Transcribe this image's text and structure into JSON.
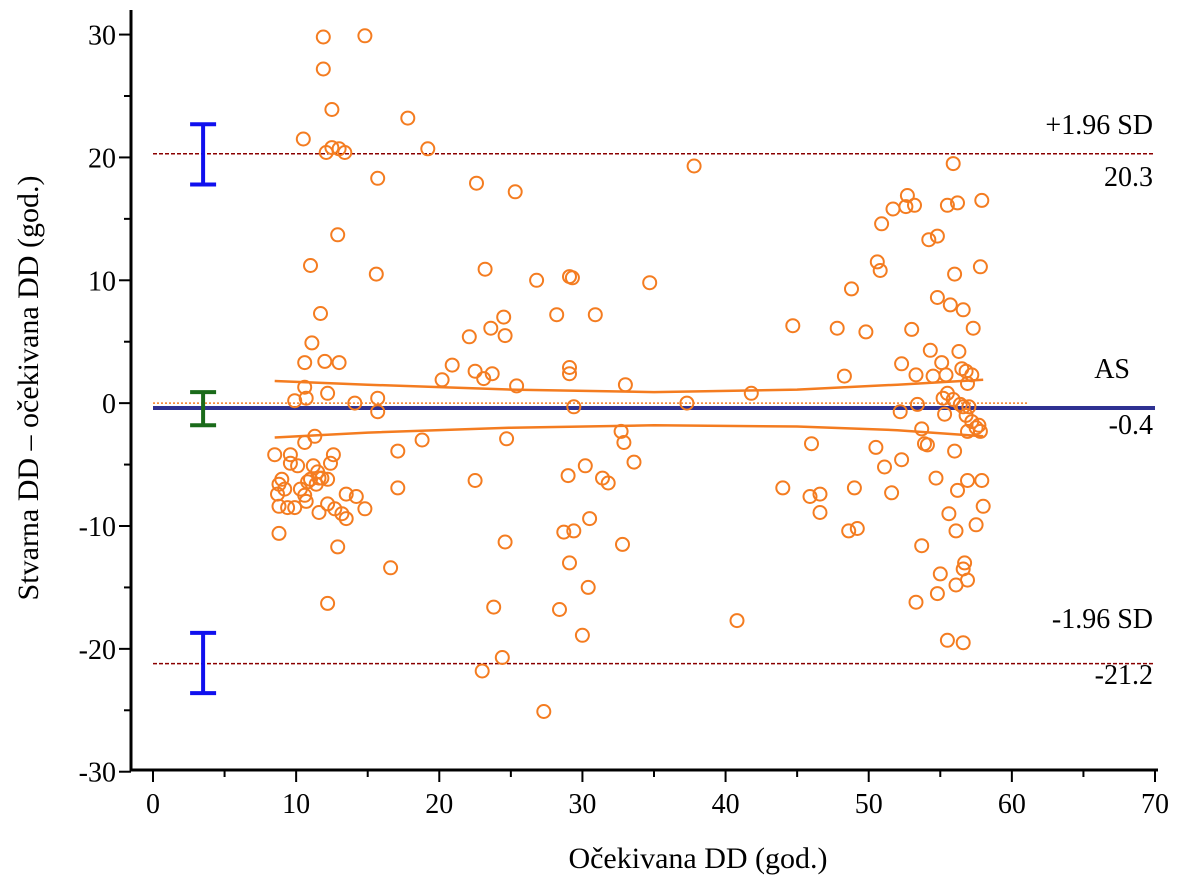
{
  "chart_data": {
    "type": "scatter",
    "title": "",
    "xlabel": "Očekivana DD (god.)",
    "ylabel": "Stvarna DD – očekivana DD (god.)",
    "xlim": [
      0,
      70
    ],
    "ylim": [
      -31,
      32
    ],
    "x_ticks": [
      0,
      10,
      20,
      30,
      40,
      50,
      60,
      70
    ],
    "y_ticks": [
      -30,
      -20,
      -10,
      0,
      10,
      20,
      30
    ],
    "grid": false,
    "zero_line": 0,
    "mean": {
      "label": "AS",
      "value_label": "-0.4",
      "value": -0.4,
      "color": "#2e3192"
    },
    "upper_loa": {
      "label": "+1.96 SD",
      "value_label": "20.3",
      "value": 20.3,
      "color": "#8b0000"
    },
    "lower_loa": {
      "label": "-1.96 SD",
      "value_label": "-21.2",
      "value": -21.2,
      "color": "#8b0000"
    },
    "ci_bars": [
      {
        "x": 3.5,
        "low": 17.8,
        "high": 22.7,
        "color": "#1010ee"
      },
      {
        "x": 3.5,
        "low": -1.8,
        "high": 0.9,
        "color": "#1a6b1a"
      },
      {
        "x": 3.5,
        "low": -23.6,
        "high": -18.7,
        "color": "#1010ee"
      }
    ],
    "regression_bands": {
      "color": "#f47c20",
      "upper": [
        [
          8.5,
          1.8
        ],
        [
          15,
          1.5
        ],
        [
          25,
          1.1
        ],
        [
          35,
          0.9
        ],
        [
          45,
          1.1
        ],
        [
          52,
          1.5
        ],
        [
          58,
          1.9
        ]
      ],
      "lower": [
        [
          8.5,
          -2.8
        ],
        [
          15,
          -2.4
        ],
        [
          25,
          -2.0
        ],
        [
          35,
          -1.8
        ],
        [
          45,
          -1.9
        ],
        [
          52,
          -2.2
        ],
        [
          58,
          -2.7
        ]
      ]
    },
    "series": [
      {
        "color": "#f47c20",
        "points": [
          [
            11.9,
            29.8
          ],
          [
            11.9,
            27.2
          ],
          [
            14.8,
            29.9
          ],
          [
            12.5,
            23.9
          ],
          [
            17.8,
            23.2
          ],
          [
            10.5,
            21.5
          ],
          [
            12.5,
            20.8
          ],
          [
            13.0,
            20.7
          ],
          [
            13.4,
            20.4
          ],
          [
            12.1,
            20.4
          ],
          [
            19.2,
            20.7
          ],
          [
            15.7,
            18.3
          ],
          [
            12.9,
            13.7
          ],
          [
            11.0,
            11.2
          ],
          [
            15.6,
            10.5
          ],
          [
            11.7,
            7.3
          ],
          [
            11.1,
            4.9
          ],
          [
            10.6,
            3.3
          ],
          [
            12.0,
            3.4
          ],
          [
            13.0,
            3.3
          ],
          [
            10.6,
            1.3
          ],
          [
            9.9,
            0.2
          ],
          [
            10.7,
            0.4
          ],
          [
            12.2,
            0.8
          ],
          [
            14.1,
            0.0
          ],
          [
            15.7,
            0.4
          ],
          [
            15.7,
            -0.7
          ],
          [
            8.5,
            -4.2
          ],
          [
            9.6,
            -4.2
          ],
          [
            9.6,
            -4.9
          ],
          [
            10.1,
            -5.1
          ],
          [
            10.6,
            -3.2
          ],
          [
            11.3,
            -2.7
          ],
          [
            12.6,
            -4.2
          ],
          [
            9.0,
            -6.2
          ],
          [
            8.8,
            -6.6
          ],
          [
            8.7,
            -7.4
          ],
          [
            8.8,
            -8.4
          ],
          [
            9.2,
            -7.0
          ],
          [
            9.4,
            -8.5
          ],
          [
            9.9,
            -8.5
          ],
          [
            10.3,
            -7.0
          ],
          [
            10.6,
            -7.5
          ],
          [
            10.8,
            -6.4
          ],
          [
            11.0,
            -6.2
          ],
          [
            11.2,
            -5.1
          ],
          [
            11.5,
            -5.6
          ],
          [
            11.6,
            -6.1
          ],
          [
            11.8,
            -6.1
          ],
          [
            11.4,
            -6.6
          ],
          [
            12.2,
            -6.2
          ],
          [
            12.4,
            -4.9
          ],
          [
            12.2,
            -8.2
          ],
          [
            11.6,
            -8.9
          ],
          [
            12.7,
            -8.6
          ],
          [
            13.2,
            -9.0
          ],
          [
            13.5,
            -9.4
          ],
          [
            13.5,
            -7.4
          ],
          [
            14.2,
            -7.6
          ],
          [
            14.8,
            -8.6
          ],
          [
            10.7,
            -8.0
          ],
          [
            8.8,
            -10.6
          ],
          [
            12.9,
            -11.7
          ],
          [
            12.2,
            -16.3
          ],
          [
            16.6,
            -13.4
          ],
          [
            17.1,
            -3.9
          ],
          [
            17.1,
            -6.9
          ],
          [
            18.8,
            -3.0
          ],
          [
            20.2,
            1.9
          ],
          [
            20.9,
            3.1
          ],
          [
            22.1,
            5.4
          ],
          [
            22.6,
            17.9
          ],
          [
            23.2,
            10.9
          ],
          [
            23.6,
            6.1
          ],
          [
            23.7,
            2.4
          ],
          [
            22.5,
            2.6
          ],
          [
            23.1,
            2.0
          ],
          [
            24.5,
            7.0
          ],
          [
            24.6,
            5.5
          ],
          [
            25.3,
            17.2
          ],
          [
            25.4,
            1.4
          ],
          [
            22.5,
            -6.3
          ],
          [
            24.7,
            -2.9
          ],
          [
            24.6,
            -11.3
          ],
          [
            23.8,
            -16.6
          ],
          [
            24.4,
            -20.7
          ],
          [
            23.0,
            -21.8
          ],
          [
            26.8,
            10.0
          ],
          [
            28.2,
            7.2
          ],
          [
            29.1,
            10.3
          ],
          [
            29.3,
            10.2
          ],
          [
            29.1,
            2.9
          ],
          [
            29.1,
            2.4
          ],
          [
            29.4,
            -0.3
          ],
          [
            28.7,
            -10.5
          ],
          [
            29.0,
            -5.9
          ],
          [
            29.1,
            -13.0
          ],
          [
            29.4,
            -10.4
          ],
          [
            28.4,
            -16.8
          ],
          [
            30.2,
            -5.1
          ],
          [
            30.5,
            -9.4
          ],
          [
            30.4,
            -15.0
          ],
          [
            30.0,
            -18.9
          ],
          [
            27.3,
            -25.1
          ],
          [
            30.9,
            7.2
          ],
          [
            31.4,
            -6.1
          ],
          [
            31.8,
            -6.5
          ],
          [
            32.7,
            -2.3
          ],
          [
            32.9,
            -3.2
          ],
          [
            33.0,
            1.5
          ],
          [
            32.8,
            -11.5
          ],
          [
            33.6,
            -4.8
          ],
          [
            34.7,
            9.8
          ],
          [
            37.3,
            0.0
          ],
          [
            37.8,
            19.3
          ],
          [
            40.8,
            -17.7
          ],
          [
            41.8,
            0.8
          ],
          [
            44.0,
            -6.9
          ],
          [
            44.7,
            6.3
          ],
          [
            45.9,
            -7.6
          ],
          [
            46.0,
            -3.3
          ],
          [
            46.6,
            -8.9
          ],
          [
            46.6,
            -7.4
          ],
          [
            47.8,
            6.1
          ],
          [
            48.3,
            2.2
          ],
          [
            48.6,
            -10.4
          ],
          [
            48.8,
            9.3
          ],
          [
            49.0,
            -6.9
          ],
          [
            49.2,
            -10.2
          ],
          [
            49.8,
            5.8
          ],
          [
            50.5,
            -3.6
          ],
          [
            50.6,
            11.5
          ],
          [
            50.8,
            10.8
          ],
          [
            50.9,
            14.6
          ],
          [
            51.1,
            -5.2
          ],
          [
            51.6,
            -7.3
          ],
          [
            51.7,
            15.8
          ],
          [
            52.3,
            3.2
          ],
          [
            52.3,
            -4.6
          ],
          [
            52.2,
            -0.7
          ],
          [
            52.6,
            16.0
          ],
          [
            52.7,
            16.9
          ],
          [
            53.2,
            16.1
          ],
          [
            53.0,
            6.0
          ],
          [
            53.3,
            2.3
          ],
          [
            53.4,
            -0.1
          ],
          [
            53.3,
            -16.2
          ],
          [
            53.7,
            -2.1
          ],
          [
            53.7,
            -11.6
          ],
          [
            53.9,
            -3.3
          ],
          [
            54.1,
            -3.4
          ],
          [
            54.2,
            13.3
          ],
          [
            54.3,
            4.3
          ],
          [
            54.5,
            2.2
          ],
          [
            54.7,
            -6.1
          ],
          [
            54.8,
            13.6
          ],
          [
            54.8,
            8.6
          ],
          [
            54.8,
            -15.5
          ],
          [
            55.0,
            -13.9
          ],
          [
            55.1,
            3.3
          ],
          [
            55.2,
            0.4
          ],
          [
            55.3,
            -0.9
          ],
          [
            55.4,
            2.3
          ],
          [
            55.5,
            0.8
          ],
          [
            55.5,
            16.1
          ],
          [
            55.5,
            -19.3
          ],
          [
            55.6,
            -9.0
          ],
          [
            55.7,
            8.0
          ],
          [
            55.9,
            19.5
          ],
          [
            55.9,
            0.3
          ],
          [
            56.0,
            10.5
          ],
          [
            56.0,
            -3.9
          ],
          [
            56.1,
            -10.4
          ],
          [
            56.1,
            -14.8
          ],
          [
            56.2,
            16.3
          ],
          [
            56.2,
            -7.1
          ],
          [
            56.3,
            4.2
          ],
          [
            56.4,
            -0.1
          ],
          [
            56.5,
            2.8
          ],
          [
            56.6,
            7.6
          ],
          [
            56.6,
            -0.3
          ],
          [
            56.6,
            -13.5
          ],
          [
            56.7,
            -13.0
          ],
          [
            56.6,
            -19.5
          ],
          [
            56.8,
            2.6
          ],
          [
            56.8,
            -1.0
          ],
          [
            56.9,
            1.6
          ],
          [
            56.9,
            -2.3
          ],
          [
            56.9,
            -6.3
          ],
          [
            56.9,
            -14.4
          ],
          [
            57.0,
            -0.3
          ],
          [
            57.2,
            2.3
          ],
          [
            57.2,
            -1.5
          ],
          [
            57.3,
            6.1
          ],
          [
            57.5,
            -2.0
          ],
          [
            57.5,
            -9.9
          ],
          [
            57.7,
            -1.8
          ],
          [
            57.8,
            11.1
          ],
          [
            57.9,
            -6.3
          ],
          [
            57.9,
            16.5
          ],
          [
            58.0,
            -8.4
          ],
          [
            57.8,
            -2.3
          ]
        ]
      }
    ]
  }
}
